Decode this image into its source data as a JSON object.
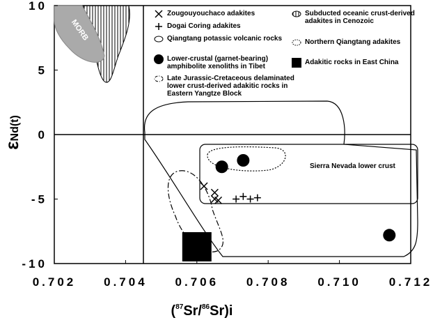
{
  "chart_data": {
    "type": "scatter",
    "xlabel_parts": [
      "(",
      "87",
      "Sr/",
      "86",
      "Sr)i"
    ],
    "ylabel_parts": [
      "ε",
      "Nd(t)"
    ],
    "xlim": [
      0.702,
      0.712
    ],
    "xticks": [
      0.702,
      0.704,
      0.706,
      0.708,
      {
        "value": 0.71,
        "label": "0.710"
      },
      0.712
    ],
    "ylim": [
      -10,
      10
    ],
    "yticks": [
      -10,
      -5,
      0,
      5,
      10
    ],
    "reference_lines": {
      "x": 0.7045,
      "y": 0
    },
    "series": [
      {
        "name": "Zougouyouchaco adakites",
        "marker": "x",
        "color": "#000000",
        "x": [
          0.7062,
          0.7065,
          0.7065,
          0.7066
        ],
        "values": [
          -4,
          -4.5,
          -5,
          -5.1
        ]
      },
      {
        "name": "Dogai Coring adakites",
        "marker": "plus",
        "color": "#000000",
        "x": [
          0.7071,
          0.7073,
          0.7075,
          0.7077
        ],
        "values": [
          -5,
          -4.8,
          -5,
          -4.9
        ]
      },
      {
        "name": "Lower-crustal (garnet-bearing) amphibolite xenoliths in Tibet",
        "marker": "circle",
        "color": "#000000",
        "x": [
          0.7067,
          0.7073,
          0.7114
        ],
        "values": [
          -2.5,
          -2,
          -7.8
        ]
      },
      {
        "name": "Adakitic rocks in East China",
        "marker": "square",
        "color": "#000000",
        "x": [
          0.706
        ],
        "values": [
          -8.7
        ]
      }
    ],
    "fields": [
      {
        "name": "Qiangtang potassic volcanic rocks",
        "style": "solid"
      },
      {
        "name": "Late Jurassic-Cretaceous delaminated lower crust-derived adakitic rocks in Eastern Yangtze Block",
        "style": "dashdot"
      },
      {
        "name": "Subducted oceanic crust-derived adakites in Cenozoic",
        "style": "hatched"
      },
      {
        "name": "Northern Qiangtang adakites",
        "style": "dotted"
      }
    ],
    "annotations": [
      "MORB",
      "Sierra Nevada lower crust"
    ]
  }
}
